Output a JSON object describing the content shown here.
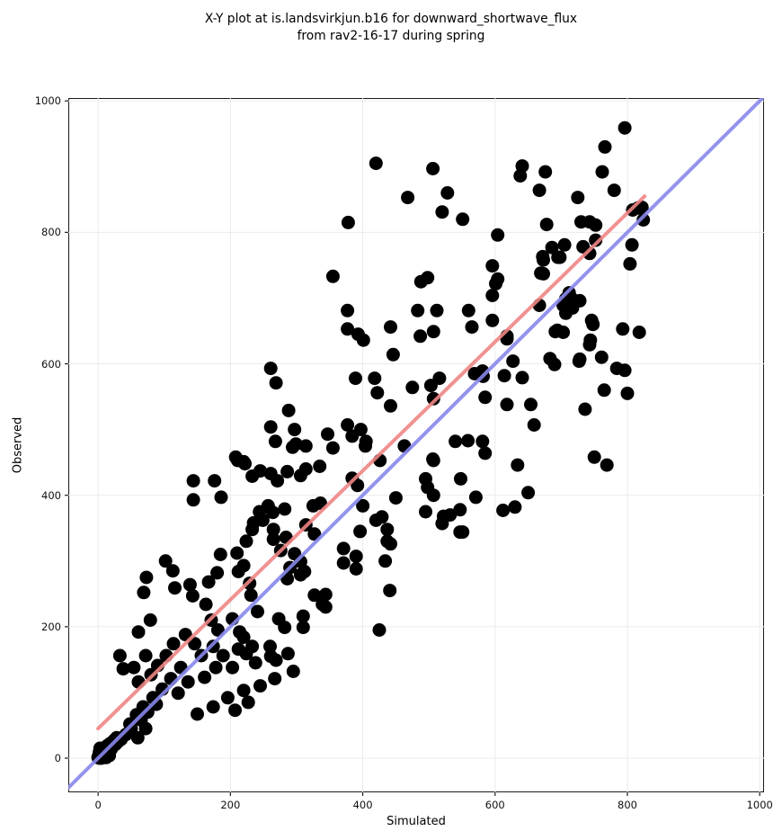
{
  "figure": {
    "title_line1": "X-Y plot at is.landsvirkjun.b16 for downward_shortwave_flux",
    "title_line2": "from rav2-16-17 during spring"
  },
  "chart_data": {
    "type": "scatter",
    "title": "X-Y plot at is.landsvirkjun.b16 for downward_shortwave_flux from rav2-16-17 during spring",
    "xlabel": "Simulated",
    "ylabel": "Observed",
    "xlim": [
      -45,
      1006.5
    ],
    "ylim": [
      -52,
      1004.4
    ],
    "x_ticks": [
      0,
      200,
      400,
      600,
      800,
      1000
    ],
    "y_ticks": [
      0,
      200,
      400,
      600,
      800,
      1000
    ],
    "grid": true,
    "legend_position": "none",
    "colors": {
      "marker": "#000000",
      "marker_opacity": 0.16,
      "grid": "#ebebeb",
      "spine": "#1a1a1a",
      "identity_line": "#8787ec",
      "regression_line": "#f08585"
    },
    "marker_radius": 7.5,
    "identity_line": {
      "name": "1:1 line",
      "from": [
        -60,
        -60
      ],
      "to": [
        1020,
        1020
      ],
      "width": 4
    },
    "regression_line": {
      "name": "fit line",
      "from": [
        0,
        45
      ],
      "to": [
        826,
        855
      ],
      "width": 4
    },
    "points": [
      [
        0,
        1
      ],
      [
        1,
        4
      ],
      [
        2,
        0
      ],
      [
        3,
        7
      ],
      [
        4,
        2
      ],
      [
        5,
        10
      ],
      [
        6,
        4
      ],
      [
        7,
        1
      ],
      [
        8,
        12
      ],
      [
        9,
        6
      ],
      [
        10,
        3
      ],
      [
        11,
        16
      ],
      [
        12,
        8
      ],
      [
        13,
        5
      ],
      [
        14,
        19
      ],
      [
        15,
        11
      ],
      [
        16,
        7
      ],
      [
        18,
        22
      ],
      [
        20,
        14
      ],
      [
        22,
        18
      ],
      [
        24,
        27
      ],
      [
        26,
        21
      ],
      [
        28,
        31
      ],
      [
        30,
        25
      ],
      [
        2,
        9
      ],
      [
        5,
        0
      ],
      [
        8,
        3
      ],
      [
        12,
        1
      ],
      [
        3,
        15
      ],
      [
        17,
        4
      ],
      [
        35,
        29
      ],
      [
        42,
        36
      ],
      [
        48,
        52
      ],
      [
        50,
        45
      ],
      [
        58,
        66
      ],
      [
        60,
        31
      ],
      [
        65,
        58
      ],
      [
        72,
        45
      ],
      [
        75,
        70
      ],
      [
        88,
        82
      ],
      [
        102,
        300
      ],
      [
        113,
        285
      ],
      [
        116,
        259
      ],
      [
        139,
        264
      ],
      [
        79,
        210
      ],
      [
        61,
        192
      ],
      [
        33,
        156
      ],
      [
        38,
        136
      ],
      [
        143,
        247
      ],
      [
        163,
        234
      ],
      [
        171,
        210
      ],
      [
        181,
        195
      ],
      [
        203,
        212
      ],
      [
        214,
        192
      ],
      [
        231,
        248
      ],
      [
        72,
        156
      ],
      [
        54,
        138
      ],
      [
        61,
        116
      ],
      [
        80,
        127
      ],
      [
        90,
        141
      ],
      [
        103,
        156
      ],
      [
        114,
        174
      ],
      [
        132,
        188
      ],
      [
        146,
        174
      ],
      [
        156,
        156
      ],
      [
        125,
        138
      ],
      [
        110,
        121
      ],
      [
        97,
        105
      ],
      [
        83,
        92
      ],
      [
        68,
        78
      ],
      [
        121,
        99
      ],
      [
        136,
        116
      ],
      [
        174,
        170
      ],
      [
        189,
        156
      ],
      [
        203,
        138
      ],
      [
        178,
        138
      ],
      [
        161,
        123
      ],
      [
        224,
        159
      ],
      [
        238,
        145
      ],
      [
        260,
        170
      ],
      [
        269,
        149
      ],
      [
        287,
        159
      ],
      [
        295,
        132
      ],
      [
        267,
        121
      ],
      [
        245,
        110
      ],
      [
        220,
        103
      ],
      [
        196,
        92
      ],
      [
        174,
        78
      ],
      [
        150,
        67
      ],
      [
        207,
        73
      ],
      [
        227,
        85
      ],
      [
        261,
        593
      ],
      [
        269,
        571
      ],
      [
        288,
        529
      ],
      [
        261,
        504
      ],
      [
        297,
        500
      ],
      [
        268,
        482
      ],
      [
        299,
        478
      ],
      [
        222,
        448
      ],
      [
        211,
        453
      ],
      [
        144,
        422
      ],
      [
        176,
        422
      ],
      [
        144,
        393
      ],
      [
        186,
        397
      ],
      [
        233,
        429
      ],
      [
        271,
        422
      ],
      [
        286,
        436
      ],
      [
        244,
        375
      ],
      [
        264,
        374
      ],
      [
        235,
        358
      ],
      [
        73,
        275
      ],
      [
        69,
        252
      ],
      [
        167,
        268
      ],
      [
        180,
        282
      ],
      [
        185,
        310
      ],
      [
        210,
        312
      ],
      [
        220,
        293
      ],
      [
        284,
        336
      ],
      [
        276,
        316
      ],
      [
        297,
        311
      ],
      [
        306,
        299
      ],
      [
        347,
        493
      ],
      [
        384,
        490
      ],
      [
        404,
        475
      ],
      [
        314,
        475
      ],
      [
        294,
        473
      ],
      [
        355,
        472
      ],
      [
        559,
        483
      ],
      [
        220,
        451
      ],
      [
        208,
        458
      ],
      [
        245,
        437
      ],
      [
        261,
        433
      ],
      [
        306,
        430
      ],
      [
        314,
        440
      ],
      [
        335,
        444
      ],
      [
        384,
        426
      ],
      [
        392,
        415
      ],
      [
        506,
        455
      ],
      [
        498,
        412
      ],
      [
        571,
        397
      ],
      [
        257,
        384
      ],
      [
        282,
        379
      ],
      [
        249,
        362
      ],
      [
        265,
        348
      ],
      [
        265,
        333
      ],
      [
        233,
        348
      ],
      [
        224,
        330
      ],
      [
        314,
        355
      ],
      [
        327,
        341
      ],
      [
        400,
        384
      ],
      [
        420,
        362
      ],
      [
        437,
        348
      ],
      [
        437,
        330
      ],
      [
        371,
        319
      ],
      [
        371,
        297
      ],
      [
        522,
        368
      ],
      [
        547,
        344
      ],
      [
        212,
        284
      ],
      [
        229,
        266
      ],
      [
        241,
        223
      ],
      [
        290,
        290
      ],
      [
        286,
        273
      ],
      [
        306,
        279
      ],
      [
        327,
        248
      ],
      [
        339,
        234
      ],
      [
        310,
        216
      ],
      [
        441,
        255
      ],
      [
        273,
        212
      ],
      [
        220,
        184
      ],
      [
        233,
        170
      ],
      [
        261,
        155
      ],
      [
        282,
        199
      ],
      [
        310,
        199
      ],
      [
        425,
        195
      ],
      [
        212,
        166
      ],
      [
        377,
        681
      ],
      [
        377,
        653
      ],
      [
        393,
        645
      ],
      [
        401,
        636
      ],
      [
        483,
        681
      ],
      [
        512,
        681
      ],
      [
        487,
        642
      ],
      [
        507,
        649
      ],
      [
        560,
        681
      ],
      [
        565,
        656
      ],
      [
        442,
        656
      ],
      [
        446,
        614
      ],
      [
        618,
        642
      ],
      [
        667,
        689
      ],
      [
        691,
        649
      ],
      [
        703,
        689
      ],
      [
        707,
        699
      ],
      [
        716,
        699
      ],
      [
        748,
        660
      ],
      [
        744,
        636
      ],
      [
        761,
        610
      ],
      [
        728,
        607
      ],
      [
        765,
        560
      ],
      [
        389,
        578
      ],
      [
        418,
        578
      ],
      [
        422,
        556
      ],
      [
        442,
        536
      ],
      [
        475,
        564
      ],
      [
        507,
        547
      ],
      [
        503,
        567
      ],
      [
        516,
        578
      ],
      [
        569,
        585
      ],
      [
        581,
        589
      ],
      [
        585,
        549
      ],
      [
        614,
        582
      ],
      [
        618,
        538
      ],
      [
        654,
        538
      ],
      [
        659,
        507
      ],
      [
        736,
        531
      ],
      [
        377,
        507
      ],
      [
        397,
        500
      ],
      [
        405,
        482
      ],
      [
        463,
        475
      ],
      [
        426,
        453
      ],
      [
        507,
        453
      ],
      [
        495,
        425
      ],
      [
        507,
        400
      ],
      [
        548,
        425
      ],
      [
        540,
        482
      ],
      [
        581,
        482
      ],
      [
        585,
        464
      ],
      [
        634,
        446
      ],
      [
        650,
        404
      ],
      [
        630,
        382
      ],
      [
        769,
        446
      ],
      [
        495,
        375
      ],
      [
        520,
        357
      ],
      [
        450,
        396
      ],
      [
        325,
        384
      ],
      [
        336,
        388
      ],
      [
        429,
        367
      ],
      [
        396,
        345
      ],
      [
        442,
        326
      ],
      [
        390,
        307
      ],
      [
        390,
        288
      ],
      [
        434,
        300
      ],
      [
        312,
        284
      ],
      [
        344,
        249
      ],
      [
        344,
        230
      ],
      [
        532,
        370
      ],
      [
        547,
        378
      ],
      [
        551,
        344
      ],
      [
        612,
        377
      ],
      [
        420,
        905
      ],
      [
        506,
        897
      ],
      [
        468,
        853
      ],
      [
        528,
        860
      ],
      [
        520,
        831
      ],
      [
        551,
        820
      ],
      [
        378,
        815
      ],
      [
        678,
        812
      ],
      [
        355,
        733
      ],
      [
        488,
        725
      ],
      [
        498,
        731
      ],
      [
        601,
        722
      ],
      [
        686,
        777
      ],
      [
        695,
        762
      ],
      [
        673,
        737
      ],
      [
        641,
        901
      ],
      [
        638,
        886
      ],
      [
        676,
        892
      ],
      [
        667,
        864
      ],
      [
        725,
        853
      ],
      [
        766,
        930
      ],
      [
        762,
        892
      ],
      [
        780,
        864
      ],
      [
        808,
        834
      ],
      [
        822,
        838
      ],
      [
        824,
        819
      ],
      [
        604,
        796
      ],
      [
        752,
        811
      ],
      [
        752,
        788
      ],
      [
        743,
        768
      ],
      [
        705,
        781
      ],
      [
        698,
        762
      ],
      [
        672,
        763
      ],
      [
        807,
        781
      ],
      [
        673,
        758
      ],
      [
        669,
        738
      ],
      [
        596,
        749
      ],
      [
        604,
        729
      ],
      [
        596,
        704
      ],
      [
        712,
        708
      ],
      [
        707,
        695
      ],
      [
        728,
        696
      ],
      [
        717,
        685
      ],
      [
        707,
        677
      ],
      [
        746,
        666
      ],
      [
        743,
        629
      ],
      [
        596,
        666
      ],
      [
        618,
        638
      ],
      [
        694,
        651
      ],
      [
        703,
        648
      ],
      [
        793,
        653
      ],
      [
        818,
        648
      ],
      [
        683,
        608
      ],
      [
        690,
        599
      ],
      [
        627,
        604
      ],
      [
        641,
        579
      ],
      [
        727,
        604
      ],
      [
        784,
        593
      ],
      [
        582,
        581
      ],
      [
        796,
        959
      ],
      [
        816,
        837
      ],
      [
        743,
        816
      ],
      [
        730,
        816
      ],
      [
        733,
        778
      ],
      [
        804,
        752
      ],
      [
        796,
        590
      ],
      [
        800,
        555
      ],
      [
        750,
        458
      ]
    ]
  }
}
